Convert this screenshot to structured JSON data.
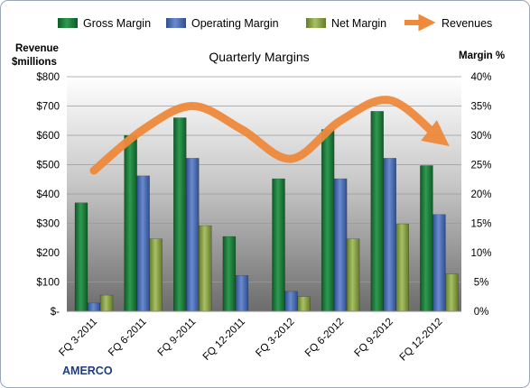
{
  "chart_data": {
    "type": "bar",
    "title": "Quarterly Margins",
    "categories": [
      "FQ 3-2011",
      "FQ 6-2011",
      "FQ 9-2011",
      "FQ 12-2011",
      "FQ 3-2012",
      "FQ 6-2012",
      "FQ 9-2012",
      "FQ 12-2012"
    ],
    "series": [
      {
        "name": "Gross Margin",
        "axis": "left",
        "values": [
          370,
          600,
          660,
          255,
          452,
          620,
          682,
          497
        ]
      },
      {
        "name": "Operating Margin",
        "axis": "left",
        "values": [
          28,
          462,
          522,
          122,
          68,
          452,
          522,
          330
        ]
      },
      {
        "name": "Net Margin",
        "axis": "left",
        "values": [
          55,
          247,
          292,
          0,
          50,
          247,
          298,
          127
        ]
      },
      {
        "name": "Revenues",
        "axis": "left",
        "type": "line",
        "values": [
          480,
          620,
          700,
          620,
          520,
          650,
          720,
          590
        ]
      }
    ],
    "left_axis": {
      "label_line1": "Revenue",
      "label_line2": "$millions",
      "ticks": [
        "$-",
        "$100",
        "$200",
        "$300",
        "$400",
        "$500",
        "$600",
        "$700",
        "$800"
      ],
      "range": [
        0,
        800
      ]
    },
    "right_axis": {
      "label": "Margin %",
      "ticks": [
        "0%",
        "5%",
        "10%",
        "15%",
        "20%",
        "25%",
        "30%",
        "35%",
        "40%"
      ],
      "range": [
        0,
        40
      ]
    },
    "grid": true,
    "legend_position": "top"
  },
  "brand": "AMERCO",
  "colors": {
    "gross": "#1c7a3c",
    "operating": "#4b6cb0",
    "net": "#8fa84c",
    "revenues": "#ef8a3c",
    "plot_top": "#ffffff",
    "plot_bottom": "#6e6e6e"
  }
}
